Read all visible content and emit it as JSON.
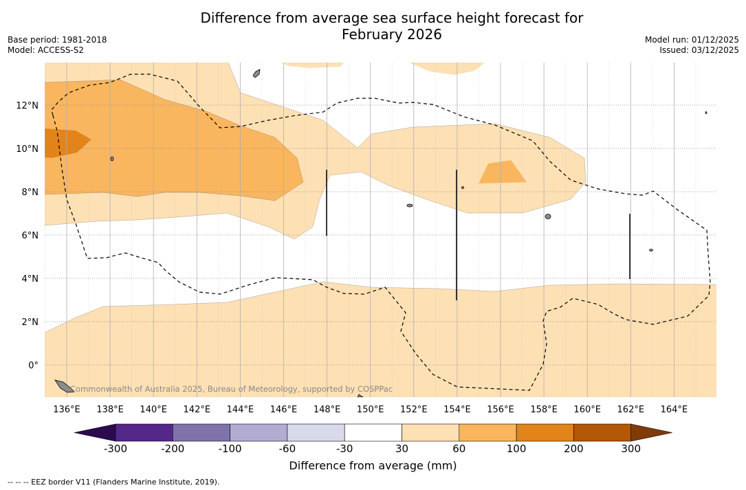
{
  "header": {
    "title_line1": "Difference from average sea surface height forecast for",
    "title_line2": "February 2026",
    "base_period": "Base period: 1981-2018",
    "model": "Model: ACCESS-S2",
    "model_run": "Model run: 01/12/2025",
    "issued": "Issued: 03/12/2025"
  },
  "map": {
    "lon_labels": [
      "136°E",
      "138°E",
      "140°E",
      "142°E",
      "144°E",
      "146°E",
      "148°E",
      "150°E",
      "152°E",
      "154°E",
      "156°E",
      "158°E",
      "160°E",
      "162°E",
      "164°E"
    ],
    "lat_labels": [
      "12°N",
      "10°N",
      "8°N",
      "6°N",
      "4°N",
      "2°N",
      "0°"
    ],
    "credit": "Commonwealth of Australia 2025, Bureau of Meteorology, supported by COSPPac",
    "colors": {
      "anomaly_30_60": "#fde0b4",
      "anomaly_60_100": "#f9b65e",
      "anomaly_100_200": "#e2841a",
      "land": "#8c8c8c"
    }
  },
  "colorbar": {
    "tick_labels": [
      "-300",
      "-200",
      "-100",
      "-60",
      "-30",
      "30",
      "60",
      "100",
      "200",
      "300"
    ],
    "colors": [
      "#2d0a4e",
      "#542888",
      "#8073ac",
      "#b2abd2",
      "#d8daeb",
      "#ffffff",
      "#fde0b4",
      "#f9b65e",
      "#e2841a",
      "#b35806",
      "#7f3b08"
    ],
    "label": "Difference from average (mm)"
  },
  "footer": {
    "eez_note": "--  --  -- EEZ border V11 (Flanders Marine Institute, 2019)."
  }
}
